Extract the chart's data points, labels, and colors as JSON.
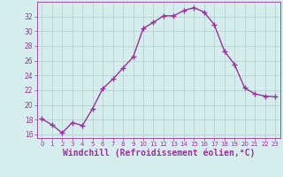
{
  "x": [
    0,
    1,
    2,
    3,
    4,
    5,
    6,
    7,
    8,
    9,
    10,
    11,
    12,
    13,
    14,
    15,
    16,
    17,
    18,
    19,
    20,
    21,
    22,
    23
  ],
  "y": [
    18.1,
    17.3,
    16.2,
    17.6,
    17.2,
    19.5,
    22.2,
    23.5,
    25.0,
    26.5,
    30.4,
    31.2,
    32.1,
    32.1,
    32.8,
    33.2,
    32.6,
    30.9,
    27.3,
    25.5,
    22.3,
    21.5,
    21.2,
    21.1
  ],
  "line_color": "#993399",
  "marker": "+",
  "marker_size": 4,
  "linewidth": 1.0,
  "xlabel": "Windchill (Refroidissement éolien,°C)",
  "xlabel_fontsize": 7,
  "xlim": [
    -0.5,
    23.5
  ],
  "ylim": [
    15.5,
    34.0
  ],
  "yticks": [
    16,
    18,
    20,
    22,
    24,
    26,
    28,
    30,
    32
  ],
  "xticks": [
    0,
    1,
    2,
    3,
    4,
    5,
    6,
    7,
    8,
    9,
    10,
    11,
    12,
    13,
    14,
    15,
    16,
    17,
    18,
    19,
    20,
    21,
    22,
    23
  ],
  "background_color": "#d5eeed",
  "grid_color": "#b0cccc",
  "line_purple": "#993399"
}
